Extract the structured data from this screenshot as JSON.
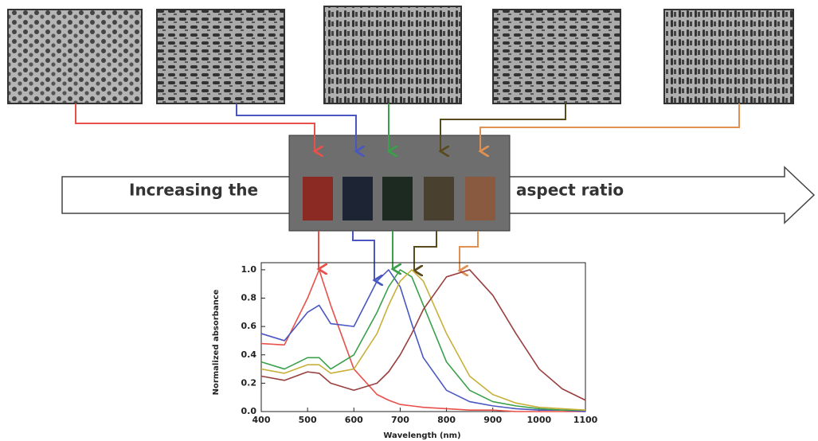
{
  "texts": {
    "arrow_left": "Increasing the",
    "arrow_right": "aspect ratio"
  },
  "chart_data": {
    "type": "line",
    "x_label": "Wavelength (nm)",
    "y_label": "Normalized absorbance",
    "x": [
      400,
      450,
      500,
      525,
      550,
      600,
      650,
      675,
      700,
      725,
      750,
      800,
      850,
      900,
      950,
      1000,
      1050,
      1100
    ],
    "series": [
      {
        "color": "#e8504a",
        "values": [
          0.48,
          0.47,
          0.8,
          1.0,
          0.75,
          0.3,
          0.12,
          0.08,
          0.05,
          0.04,
          0.03,
          0.02,
          0.01,
          0.01,
          0,
          0,
          0,
          0
        ]
      },
      {
        "color": "#4a57c0",
        "values": [
          0.55,
          0.5,
          0.7,
          0.75,
          0.62,
          0.6,
          0.92,
          1.0,
          0.88,
          0.62,
          0.38,
          0.15,
          0.07,
          0.04,
          0.02,
          0.01,
          0.01,
          0
        ]
      },
      {
        "color": "#3aa04a",
        "values": [
          0.35,
          0.3,
          0.38,
          0.38,
          0.3,
          0.4,
          0.7,
          0.88,
          1.0,
          0.95,
          0.75,
          0.35,
          0.15,
          0.07,
          0.04,
          0.02,
          0.01,
          0.01
        ]
      },
      {
        "color": "#c8b03a",
        "values": [
          0.3,
          0.27,
          0.33,
          0.33,
          0.27,
          0.3,
          0.55,
          0.75,
          0.92,
          1.0,
          0.92,
          0.55,
          0.25,
          0.12,
          0.06,
          0.03,
          0.02,
          0.01
        ]
      },
      {
        "color": "#9a3f3f",
        "values": [
          0.25,
          0.22,
          0.28,
          0.27,
          0.2,
          0.15,
          0.2,
          0.28,
          0.4,
          0.55,
          0.72,
          0.95,
          1.0,
          0.82,
          0.55,
          0.3,
          0.16,
          0.08
        ]
      }
    ],
    "xlim": [
      400,
      1100
    ],
    "xticks": [
      400,
      500,
      600,
      700,
      800,
      900,
      1000,
      1100
    ],
    "ylim": [
      0,
      1.05
    ],
    "yticks": [
      {
        "value": 0,
        "label": "0.0"
      },
      0.2,
      0.4,
      0.6,
      0.8,
      {
        "value": 1,
        "label": "1.0"
      }
    ]
  }
}
